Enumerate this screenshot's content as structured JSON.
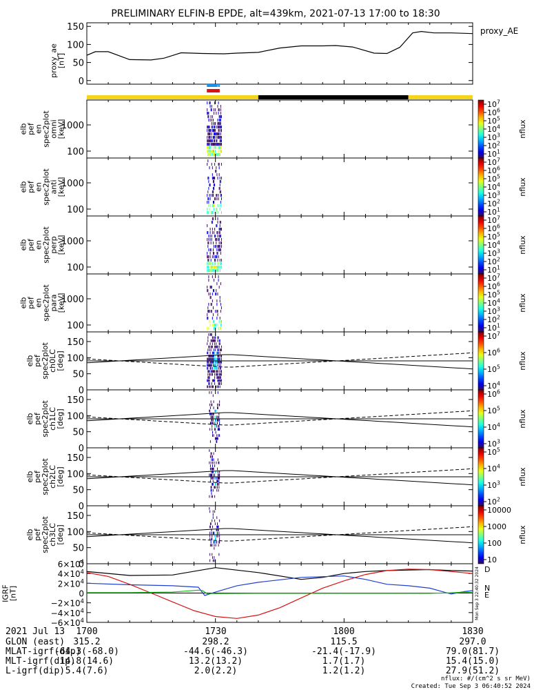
{
  "title": "PRELIMINARY ELFIN-B EPDE, alt=439km, 2021-07-13 17:00 to 18:30",
  "colors": {
    "day_band": "#f2d51c",
    "night_band": "#000000",
    "science_blue": "#1e90e6",
    "science_red": "#e01010",
    "bx": "#d81010",
    "by": "#1b3fcf",
    "bz": "#16b316",
    "btot": "#000000"
  },
  "chart_data": [
    {
      "type": "line",
      "name": "proxy_AE",
      "legend": "proxy_AE",
      "ylabel": [
        "proxy_ae",
        "[nT]"
      ],
      "yticks": [
        "150",
        "100",
        "50",
        "0"
      ],
      "ylim": [
        -10,
        160
      ],
      "x_minutes": [
        0,
        2,
        5,
        10,
        15,
        18,
        22,
        27,
        32,
        35,
        40,
        45,
        50,
        55,
        58,
        62,
        67,
        70,
        73,
        76,
        78,
        81,
        85,
        90
      ],
      "values": [
        70,
        80,
        80,
        58,
        57,
        62,
        77,
        75,
        74,
        76,
        78,
        90,
        96,
        96,
        97,
        93,
        76,
        75,
        92,
        132,
        136,
        132,
        132,
        130
      ]
    },
    {
      "type": "heatmap",
      "panel": "spec2plot omni",
      "ylabel": [
        "elb",
        "pef",
        "en",
        "spec2plot",
        "omni",
        "[keV]"
      ],
      "yticks": [
        "1000",
        "100"
      ],
      "colorbar_ticks": [
        "10^7",
        "10^6",
        "10^5",
        "10^4",
        "10^3",
        "10^2",
        "10^1"
      ],
      "colorbar_label": "nflux",
      "active_minutes": [
        28.0,
        31.5
      ]
    },
    {
      "type": "heatmap",
      "panel": "spec2plot anti",
      "ylabel": [
        "elb",
        "pef",
        "en",
        "spec2plot",
        "anti",
        "[keV]"
      ],
      "yticks": [
        "1000",
        "100"
      ],
      "colorbar_ticks": [
        "10^7",
        "10^6",
        "10^5",
        "10^4",
        "10^3",
        "10^2",
        "10^1"
      ],
      "colorbar_label": "nflux",
      "active_minutes": [
        28.0,
        31.5
      ]
    },
    {
      "type": "heatmap",
      "panel": "spec2plot perp",
      "ylabel": [
        "elb",
        "pef",
        "en",
        "spec2plot",
        "perp",
        "[keV]"
      ],
      "yticks": [
        "1000",
        "100"
      ],
      "colorbar_ticks": [
        "10^7",
        "10^6",
        "10^5",
        "10^4",
        "10^3",
        "10^2",
        "10^1"
      ],
      "colorbar_label": "nflux",
      "active_minutes": [
        28.0,
        31.5
      ]
    },
    {
      "type": "heatmap",
      "panel": "spec2plot para",
      "ylabel": [
        "elb",
        "pef",
        "en",
        "spec2plot",
        "para",
        "[keV]"
      ],
      "yticks": [
        "1000",
        "100"
      ],
      "colorbar_ticks": [
        "10^7",
        "10^6",
        "10^5",
        "10^4",
        "10^3",
        "10^2",
        "10^1"
      ],
      "colorbar_label": "nflux",
      "active_minutes": [
        28.0,
        31.5
      ]
    },
    {
      "type": "heatmap",
      "panel": "spec2plot ch0LC",
      "ylabel": [
        "elb",
        "pef",
        "spec2plot",
        "ch0LC",
        "[deg]"
      ],
      "yticks": [
        "150",
        "100",
        "50",
        "0"
      ],
      "colorbar_ticks": [
        "10^7",
        "10^6",
        "10^5",
        "10^4"
      ],
      "colorbar_label": "nflux",
      "active_minutes": [
        28.0,
        31.5
      ]
    },
    {
      "type": "heatmap",
      "panel": "spec2plot ch1LC",
      "ylabel": [
        "elb",
        "pef",
        "spec2plot",
        "ch1LC",
        "[deg]"
      ],
      "yticks": [
        "150",
        "100",
        "50",
        "0"
      ],
      "colorbar_ticks": [
        "10^6",
        "10^5",
        "10^4",
        "10^3"
      ],
      "colorbar_label": "nflux",
      "active_minutes": [
        28.5,
        31.0
      ]
    },
    {
      "type": "heatmap",
      "panel": "spec2plot ch2LC",
      "ylabel": [
        "elb",
        "pef",
        "spec2plot",
        "ch2LC",
        "[deg]"
      ],
      "yticks": [
        "150",
        "100",
        "50",
        "0"
      ],
      "colorbar_ticks": [
        "10^5",
        "10^4",
        "10^3",
        "10^2"
      ],
      "colorbar_label": "nflux",
      "active_minutes": [
        28.5,
        31.0
      ]
    },
    {
      "type": "heatmap",
      "panel": "spec2plot ch3LC",
      "ylabel": [
        "elb",
        "pef",
        "spec2plot",
        "ch3LC",
        "[deg]"
      ],
      "yticks": [
        "150",
        "100",
        "50",
        "0"
      ],
      "colorbar_ticks": [
        "10000",
        "1000",
        "100",
        "10"
      ],
      "colorbar_label": "nflux",
      "active_minutes": [
        28.5,
        31.0
      ]
    },
    {
      "type": "line",
      "panel": "IGRF",
      "ylabel": [
        "IGRF",
        "[nT]"
      ],
      "yticks": [
        "6×10^4",
        "4×10^4",
        "2×10^4",
        "0",
        "−2×10^4",
        "−4×10^4",
        "−6×10^4"
      ],
      "ylim": [
        -60000,
        60000
      ],
      "legend": [
        "N",
        "E",
        "D"
      ],
      "series": [
        {
          "key": "btot",
          "x_minutes": [
            0,
            10,
            20,
            30,
            40,
            50,
            55,
            60,
            65,
            70,
            75,
            80,
            85,
            90
          ],
          "values": [
            44000,
            36000,
            37000,
            52000,
            42000,
            28000,
            32000,
            40000,
            44000,
            46000,
            47000,
            48000,
            46000,
            45000
          ]
        },
        {
          "key": "bx",
          "x_minutes": [
            0,
            5,
            10,
            15,
            20,
            25,
            30,
            35,
            40,
            45,
            50,
            55,
            60,
            65,
            70,
            75,
            80,
            85,
            90
          ],
          "values": [
            42000,
            34000,
            18000,
            0,
            -18000,
            -36000,
            -48000,
            -52000,
            -45000,
            -30000,
            -10000,
            10000,
            25000,
            38000,
            46000,
            49000,
            48000,
            44000,
            40000
          ]
        },
        {
          "key": "by",
          "x_minutes": [
            0,
            10,
            20,
            26,
            27.5,
            30,
            35,
            40,
            50,
            60,
            65,
            70,
            75,
            80,
            85,
            88,
            90
          ],
          "values": [
            20000,
            17000,
            15000,
            12000,
            -5000,
            2000,
            15000,
            22000,
            32000,
            35000,
            28000,
            18000,
            15000,
            10000,
            -2000,
            3000,
            5000
          ]
        },
        {
          "key": "bz",
          "x_minutes": [
            0,
            10,
            20,
            26,
            27,
            28,
            30,
            40,
            50,
            60,
            70,
            80,
            85,
            88,
            90
          ],
          "values": [
            1000,
            1000,
            2000,
            6000,
            5000,
            -1000,
            -1000,
            -500,
            -500,
            -500,
            -500,
            -500,
            500,
            2000,
            1000
          ]
        }
      ]
    }
  ],
  "time_axis": {
    "labels": [
      "1700",
      "1730",
      "1800",
      "1830"
    ],
    "label_minutes": [
      0,
      30,
      60,
      90
    ]
  },
  "orbit_table": {
    "date": "2021 Jul 13",
    "rows": [
      {
        "label": "GLON (east)",
        "values": [
          "315.2",
          "298.2",
          "115.5",
          "297.0"
        ]
      },
      {
        "label": "MLAT-igrf(dip)",
        "values": [
          "-64.3(-68.0)",
          "-44.6(-46.3)",
          "-21.4(-17.9)",
          "79.0(81.7)"
        ]
      },
      {
        "label": "MLT-igrf(dip)",
        "values": [
          "14.8(14.6)",
          "13.2(13.2)",
          "1.7(1.7)",
          "15.4(15.0)"
        ]
      },
      {
        "label": "L-igrf(dip)",
        "values": [
          "5.4(7.6)",
          "2.0(2.2)",
          "1.2(1.2)",
          "27.9(51.2)"
        ]
      }
    ]
  },
  "footer": {
    "units": "nflux: #/(cm^2 s sr MeV)",
    "created": "Created: Tue Sep  3 06:40:52 2024",
    "side_note": "Mon Sep  3 22:40:32 2024"
  }
}
